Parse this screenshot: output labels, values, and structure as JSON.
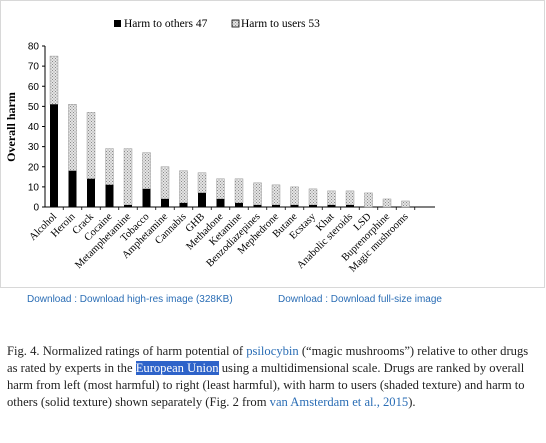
{
  "chart_data": {
    "type": "bar",
    "stacked": true,
    "ylabel": "Overall harm",
    "ylim": [
      0,
      80
    ],
    "yticks": [
      0,
      10,
      20,
      30,
      40,
      50,
      60,
      70,
      80
    ],
    "grid": false,
    "legend_position": "top",
    "categories": [
      "Alcohol",
      "Heroin",
      "Crack",
      "Cocaine",
      "Metamphetamine",
      "Tobacco",
      "Amphetamine",
      "Cannabis",
      "GHB",
      "Methadone",
      "Ketamine",
      "Benzodiazepines",
      "Mephedrone",
      "Butane",
      "Ecstasy",
      "Khat",
      "Anabolic steroids",
      "LSD",
      "Buprenorphine",
      "Magic mushrooms"
    ],
    "series": [
      {
        "name": "Harm to others 47",
        "values": [
          51,
          18,
          14,
          11,
          1,
          9,
          4,
          2,
          7,
          4,
          2,
          1,
          1,
          1,
          1,
          1,
          1,
          0,
          0,
          0
        ]
      },
      {
        "name": "Harm to users 53",
        "values": [
          24,
          33,
          33,
          18,
          28,
          18,
          16,
          16,
          10,
          10,
          12,
          11,
          10,
          9,
          8,
          7,
          7,
          7,
          4,
          3
        ]
      }
    ],
    "colors": {
      "others": "#000000",
      "users": "#d6d6d6"
    }
  },
  "links": {
    "highres": "Download : Download high-res image (328KB)",
    "fullsize": "Download : Download full-size image"
  },
  "caption": {
    "part1": "Fig. 4. Normalized ratings of harm potential of ",
    "link_psilocybin": "psilocybin",
    "part2": " (“magic mushrooms”) relative to other drugs as rated by experts in the ",
    "highlight": "European Union",
    "part3": " using a multidimensional scale. Drugs are ranked by overall harm from left (most harmful) to right (least harmful), with harm to users (shaded texture) and harm to others (solid texture) shown separately (Fig. 2 from ",
    "link_ref": "van Amsterdam et al., 2015",
    "part4": ")."
  }
}
